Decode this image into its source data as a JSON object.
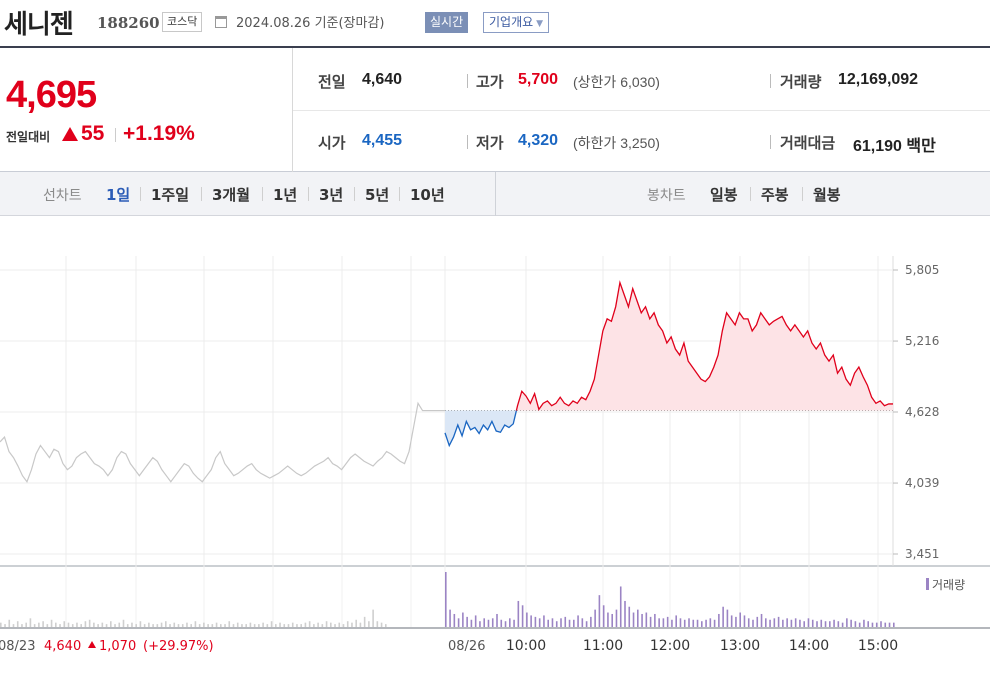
{
  "header": {
    "name": "세니젠",
    "code": "188260",
    "market": "코스닥",
    "calendar_icon": "calendar-icon",
    "date": "2024.08.26 기준(장마감)",
    "realtime_label": "실시간",
    "company_label": "기업개요"
  },
  "summary": {
    "price": "4,695",
    "change_label": "전일대비",
    "change_direction": "up",
    "change": "55",
    "change_pct": "+1.19%",
    "prev_close_label": "전일",
    "prev_close": "4,640",
    "open_label": "시가",
    "open": "4,455",
    "high_label": "고가",
    "high": "5,700",
    "upper_limit": "(상한가 6,030)",
    "low_label": "저가",
    "low": "4,320",
    "lower_limit": "(하한가 3,250)",
    "volume_label": "거래량",
    "volume": "12,169,092",
    "value_label": "거래대금",
    "value": "61,190 백만"
  },
  "tabs": {
    "line_label": "선차트",
    "line_tabs": [
      "1일",
      "1주일",
      "3개월",
      "1년",
      "3년",
      "5년",
      "10년"
    ],
    "active_line_tab": "1일",
    "candle_label": "봉차트",
    "candle_tabs": [
      "일봉",
      "주봉",
      "월봉"
    ]
  },
  "colors": {
    "up": "#e0001b",
    "down": "#1a66c2",
    "prev_line": "#c8c8c8",
    "volume_today": "#9b84c4",
    "volume_prev": "#cfcfcf"
  },
  "chart_data": {
    "type": "line",
    "y_ticks": [
      "5,805",
      "5,216",
      "4,628",
      "4,039",
      "3,451"
    ],
    "ylim": [
      3451,
      5805
    ],
    "baseline": 4640,
    "x_labels": [
      "10:00",
      "11:00",
      "12:00",
      "13:00",
      "14:00",
      "15:00"
    ],
    "series": [
      {
        "day": "prev",
        "values": [
          4380,
          4420,
          4300,
          4250,
          4180,
          4100,
          4050,
          4150,
          4280,
          4350,
          4300,
          4250,
          4320,
          4300,
          4200,
          4150,
          4180,
          4250,
          4280,
          4300,
          4250,
          4200,
          4180,
          4150,
          4100,
          4150,
          4250,
          4300,
          4280,
          4200,
          4150,
          4100,
          4150,
          4200,
          4250,
          4220,
          4150,
          4100,
          4050,
          4100,
          4150,
          4200,
          4180,
          4120,
          4080,
          4050,
          4100,
          4150,
          4250,
          4300,
          4200,
          4150,
          4100,
          4120,
          4150,
          4180,
          4200,
          4150,
          4120,
          4100,
          4080,
          4100,
          4120,
          4150,
          4180,
          4150,
          4120,
          4100,
          4120,
          4150,
          4180,
          4200,
          4220,
          4250,
          4200,
          4180,
          4150,
          4200,
          4250,
          4280,
          4250,
          4220,
          4200,
          4180,
          4220,
          4250,
          4300,
          4280,
          4250,
          4220,
          4200,
          4300,
          4500,
          4700,
          4640,
          4640,
          4640,
          4640,
          4640,
          4640
        ]
      },
      {
        "day": "today",
        "values": [
          4455,
          4350,
          4420,
          4520,
          4430,
          4550,
          4480,
          4500,
          4450,
          4520,
          4480,
          4550,
          4470,
          4460,
          4520,
          4500,
          4530,
          4680,
          4800,
          4760,
          4700,
          4780,
          4650,
          4700,
          4720,
          4680,
          4700,
          4750,
          4700,
          4680,
          4720,
          4700,
          4750,
          4730,
          4800,
          4900,
          5100,
          5300,
          5400,
          5380,
          5500,
          5700,
          5600,
          5500,
          5650,
          5550,
          5450,
          5500,
          5400,
          5450,
          5350,
          5300,
          5200,
          5250,
          5150,
          5100,
          5200,
          5050,
          5000,
          4950,
          4900,
          4880,
          4920,
          5000,
          5100,
          5300,
          5450,
          5400,
          5350,
          5450,
          5400,
          5400,
          5300,
          5350,
          5450,
          5400,
          5350,
          5380,
          5400,
          5420,
          5350,
          5300,
          5350,
          5300,
          5250,
          5300,
          5200,
          5150,
          5200,
          5100,
          5050,
          5100,
          4950,
          5000,
          4900,
          4850,
          4950,
          5000,
          4920,
          4850,
          4750,
          4700,
          4720,
          4680,
          4695,
          4695
        ]
      }
    ],
    "volume": {
      "prev": [
        3,
        2,
        5,
        2,
        4,
        2,
        3,
        6,
        2,
        3,
        4,
        2,
        5,
        3,
        2,
        4,
        3,
        2,
        3,
        2,
        4,
        5,
        3,
        2,
        3,
        2,
        4,
        2,
        3,
        5,
        2,
        3,
        2,
        4,
        2,
        3,
        2,
        2,
        3,
        4,
        2,
        3,
        2,
        2,
        3,
        2,
        4,
        2,
        3,
        2,
        2,
        3,
        2,
        2,
        4,
        2,
        3,
        2,
        2,
        3,
        2,
        2,
        3,
        2,
        4,
        2,
        3,
        2,
        2,
        3,
        2,
        2,
        3,
        4,
        2,
        3,
        2,
        4,
        3,
        2,
        3,
        2,
        4,
        3,
        5,
        3,
        7,
        4,
        12,
        4,
        3,
        2
      ],
      "today": [
        38,
        12,
        9,
        6,
        10,
        7,
        5,
        8,
        4,
        6,
        5,
        6,
        9,
        5,
        4,
        6,
        5,
        18,
        15,
        10,
        8,
        7,
        6,
        8,
        5,
        6,
        4,
        6,
        7,
        5,
        5,
        8,
        6,
        4,
        7,
        12,
        22,
        15,
        10,
        9,
        12,
        28,
        18,
        14,
        10,
        12,
        9,
        10,
        7,
        9,
        6,
        6,
        7,
        5,
        8,
        6,
        5,
        6,
        5,
        5,
        4,
        5,
        6,
        5,
        9,
        14,
        12,
        8,
        7,
        10,
        8,
        6,
        5,
        7,
        9,
        6,
        5,
        6,
        7,
        5,
        6,
        5,
        6,
        5,
        4,
        6,
        5,
        4,
        5,
        4,
        4,
        5,
        4,
        3,
        6,
        5,
        4,
        3,
        5,
        4,
        3,
        3,
        4,
        3,
        3,
        3
      ]
    },
    "prev_footer": {
      "date": "08/23",
      "close": "4,640",
      "change": "1,070",
      "pct": "(+29.97%)"
    },
    "today_date": "08/26",
    "volume_legend": "거래량"
  }
}
